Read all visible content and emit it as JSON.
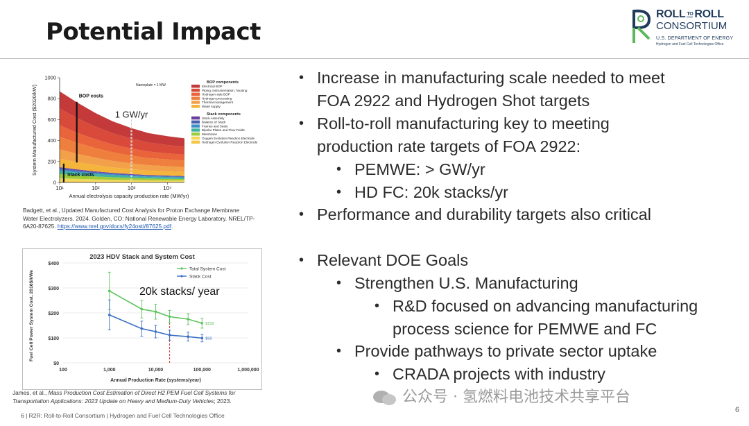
{
  "slide": {
    "title": "Potential Impact",
    "page_number": "6",
    "footer": "6   |   R2R: Roll-to-Roll Consortium   |   Hydrogen and Fuel Cell Technologies Office",
    "watermark": "公众号 · 氢燃料电池技术共享平台"
  },
  "logo": {
    "line1_a": "ROLL",
    "line1_to": "TO",
    "line1_b": "ROLL",
    "line2": "CONSORTIUM",
    "line3": "U.S. DEPARTMENT OF ENERGY",
    "line4": "Hydrogen and Fuel Cell Technologies Office",
    "color": "#1f3b5b",
    "accent": "#5cb85c"
  },
  "bullets": [
    {
      "level": 1,
      "text": "Increase in manufacturing scale needed to meet"
    },
    {
      "level": 1,
      "cont": true,
      "text": "FOA 2922 and Hydrogen Shot targets"
    },
    {
      "level": 1,
      "text": "Roll-to-roll manufacturing key to meeting"
    },
    {
      "level": 1,
      "cont": true,
      "text": "production rate targets of FOA 2922:"
    },
    {
      "level": 2,
      "text": "PEMWE: > GW/yr"
    },
    {
      "level": 2,
      "text": "HD FC: 20k stacks/yr"
    },
    {
      "level": 1,
      "text": "Performance and durability targets also critical"
    },
    {
      "level": 1,
      "text": "Relevant DOE Goals"
    },
    {
      "level": 2,
      "text": "Strengthen U.S. Manufacturing"
    },
    {
      "level": 3,
      "text": "R&D focused on advancing manufacturing"
    },
    {
      "level": 3,
      "cont": true,
      "text": "process science for PEMWE and FC"
    },
    {
      "level": 2,
      "text": "Provide pathways to private sector uptake"
    },
    {
      "level": 3,
      "text": "CRADA projects with industry"
    }
  ],
  "captions": {
    "chart1_line1": "Badgett, et al., Updated Manufactured Cost Analysis for Proton Exchange Membrane",
    "chart1_line2": "Water Electrolyzers. 2024. Golden, CO: National Renewable Energy Laboratory. NREL/TP-",
    "chart1_line3_a": "6A20-87625. ",
    "chart1_link": "https://www.nrel.gov/docs/fy24osti/87625.pdf",
    "chart1_line3_b": ".",
    "chart2_line1_a": "James, et al., ",
    "chart2_line1_i": "Mass Production Cost Estimation of Direct H2 PEM Fuel Cell Systems for",
    "chart2_line2_i": "Transportation Applications:  2023 Update on Heavy and Medium-Duty Vehicles",
    "chart2_line2_b": "; 2023."
  },
  "chart_data": [
    {
      "type": "area",
      "title": "",
      "xlabel": "Annual electrolysis capacity production rate (MW/yr)",
      "ylabel": "System Manufactured Cost ($2020/kW)",
      "xscale": "log",
      "xlim": [
        10,
        30000
      ],
      "ylim": [
        0,
        1000
      ],
      "yticks": [
        0,
        200,
        400,
        600,
        800,
        1000
      ],
      "xtick_labels": [
        "10¹",
        "10²",
        "10³",
        "10⁴"
      ],
      "xticks": [
        10,
        100,
        1000,
        10000
      ],
      "x": [
        10,
        30,
        100,
        300,
        1000,
        3000,
        10000,
        30000
      ],
      "nameplate_note": "Nameplate = 1 MW",
      "annotations": {
        "bop": "BOP costs",
        "stack": "Stack costs",
        "marker": "1 GW/yr",
        "marker_x": 1000
      },
      "legend_bop_title": "BOP components",
      "legend_stack_title": "Stack components",
      "series": [
        {
          "name": "Hydrogen Evolution Reaction Electrode",
          "group": "stack",
          "color": "#f3c64a",
          "values": [
            12,
            10,
            8,
            7,
            6,
            5,
            5,
            5
          ]
        },
        {
          "name": "Oxygen Evolution Reaction Electrode",
          "group": "stack",
          "color": "#f0d85a",
          "values": [
            28,
            25,
            22,
            19,
            17,
            15,
            14,
            13
          ]
        },
        {
          "name": "Membrane",
          "group": "stack",
          "color": "#9ccc3c",
          "values": [
            40,
            34,
            28,
            24,
            20,
            18,
            16,
            15
          ]
        },
        {
          "name": "Bipolar Plates and Flow Fields",
          "group": "stack",
          "color": "#3fb3a0",
          "values": [
            30,
            26,
            22,
            19,
            17,
            15,
            14,
            13
          ]
        },
        {
          "name": "Frames and Seals",
          "group": "stack",
          "color": "#3e8fc6",
          "values": [
            14,
            12,
            10,
            9,
            8,
            7,
            7,
            6
          ]
        },
        {
          "name": "Balance of Stack",
          "group": "stack",
          "color": "#4a5fb0",
          "values": [
            12,
            10,
            9,
            8,
            7,
            6,
            6,
            5
          ]
        },
        {
          "name": "Stack Assembly",
          "group": "stack",
          "color": "#6b3fa0",
          "values": [
            10,
            8,
            7,
            6,
            5,
            5,
            4,
            4
          ]
        },
        {
          "name": "Water supply",
          "group": "bop",
          "color": "#f5b53c",
          "values": [
            80,
            70,
            60,
            52,
            46,
            42,
            40,
            38
          ]
        },
        {
          "name": "Thermal management",
          "group": "bop",
          "color": "#f2a04a",
          "values": [
            90,
            80,
            70,
            62,
            56,
            52,
            50,
            48
          ]
        },
        {
          "name": "Hydrogen processing",
          "group": "bop",
          "color": "#ef7f3c",
          "values": [
            120,
            105,
            92,
            82,
            74,
            68,
            64,
            62
          ]
        },
        {
          "name": "Hydrogen-side BOP",
          "group": "bop",
          "color": "#e9643a",
          "values": [
            110,
            96,
            84,
            75,
            68,
            62,
            58,
            56
          ]
        },
        {
          "name": "Piping, instrumentation, housing",
          "group": "bop",
          "color": "#d94a3a",
          "values": [
            160,
            140,
            120,
            106,
            95,
            86,
            80,
            76
          ]
        },
        {
          "name": "Electrical BOP",
          "group": "bop",
          "color": "#c43a3a",
          "values": [
            164,
            150,
            130,
            115,
            100,
            90,
            84,
            80
          ]
        }
      ]
    },
    {
      "type": "line",
      "title": "2023 HDV Stack and System Cost",
      "xlabel": "Annual Production Rate (systems/year)",
      "ylabel": "Fuel Cell Power System Cost, 2016$/kWe",
      "xscale": "log",
      "xlim": [
        100,
        1000000
      ],
      "ylim": [
        0,
        400
      ],
      "xticks": [
        100,
        1000,
        10000,
        100000,
        1000000
      ],
      "xtick_labels": [
        "100",
        "1,000",
        "10,000",
        "100,000",
        "1,000,000"
      ],
      "yticks": [
        0,
        100,
        200,
        300,
        400
      ],
      "ytick_labels": [
        "$0",
        "$100",
        "$200",
        "$300",
        "$400"
      ],
      "marker_x": 20000,
      "marker_label": "20k stacks/ year",
      "series": [
        {
          "name": "Total System Cost",
          "color": "#5cc45c",
          "x": [
            1000,
            5000,
            10000,
            20000,
            50000,
            100000
          ],
          "values": [
            288,
            215,
            205,
            185,
            175,
            159
          ],
          "err": [
            75,
            35,
            30,
            25,
            22,
            20
          ],
          "end_label": "$159"
        },
        {
          "name": "Stack Cost",
          "color": "#3a6fc4",
          "x": [
            1000,
            5000,
            10000,
            20000,
            50000,
            100000
          ],
          "values": [
            192,
            137,
            125,
            111,
            105,
            99
          ],
          "err": [
            60,
            30,
            25,
            20,
            18,
            15
          ],
          "end_label": "$99"
        }
      ]
    }
  ]
}
